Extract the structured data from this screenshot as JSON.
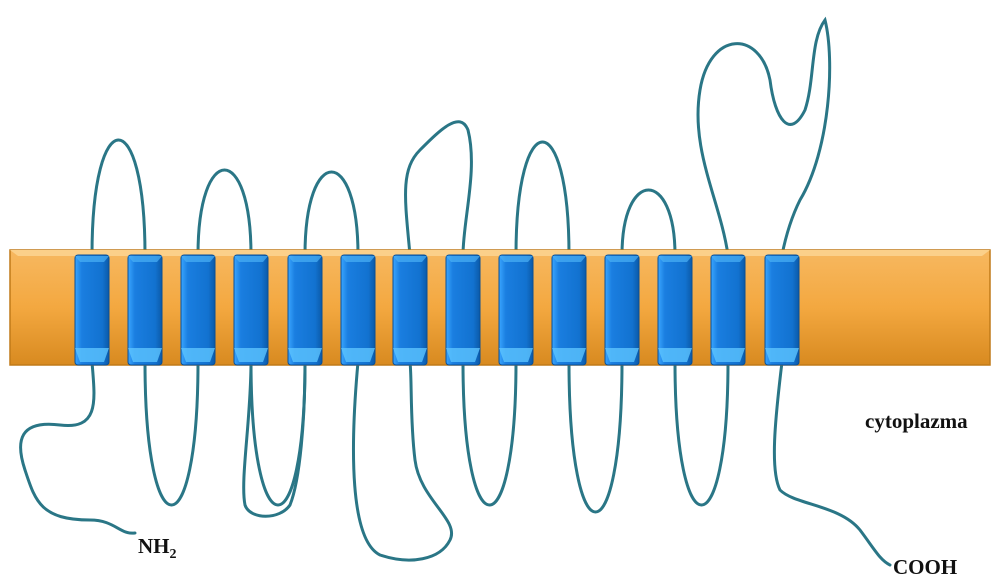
{
  "labels": {
    "n_terminus": {
      "text": "NH",
      "subscript": "2"
    },
    "cytoplasm": "cytoplazma",
    "c_terminus": "COOH"
  }
}
